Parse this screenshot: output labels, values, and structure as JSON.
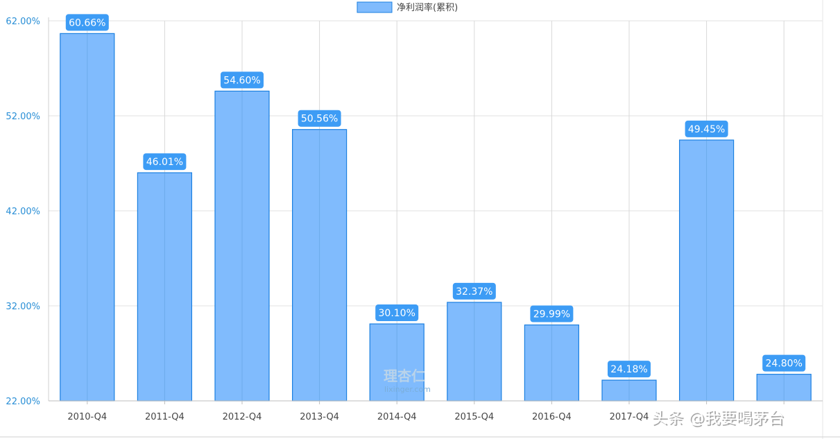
{
  "chart_data": {
    "type": "bar",
    "categories": [
      "2010-Q4",
      "2011-Q4",
      "2012-Q4",
      "2013-Q4",
      "2014-Q4",
      "2015-Q4",
      "2016-Q4",
      "2017-Q4",
      "",
      ""
    ],
    "series": [
      {
        "name": "净利润率(累积)",
        "values": [
          60.66,
          46.01,
          54.6,
          50.56,
          30.1,
          32.37,
          29.99,
          24.18,
          49.45,
          24.8
        ],
        "labels": [
          "60.66%",
          "46.01%",
          "54.60%",
          "50.56%",
          "30.10%",
          "32.37%",
          "29.99%",
          "24.18%",
          "49.45%",
          "24.80%"
        ]
      }
    ],
    "ylim": [
      22,
      62
    ],
    "yticks": [
      22,
      32,
      42,
      52,
      62
    ],
    "ytick_labels": [
      "22.00%",
      "32.00%",
      "42.00%",
      "52.00%",
      "62.00%"
    ],
    "grid": true,
    "legend": "top-center",
    "colors": {
      "bar_fill": "#80bbfd",
      "bar_stroke": "#1a7fe0",
      "label_bg": "#3d9cf5",
      "axis_text": "#2a8fd6",
      "grid": "#e0e0e0"
    }
  },
  "logo": {
    "glyphs": "理杏仁",
    "text": "lixinger.com"
  },
  "watermark": {
    "text": "头条 @我要喝茅台"
  }
}
